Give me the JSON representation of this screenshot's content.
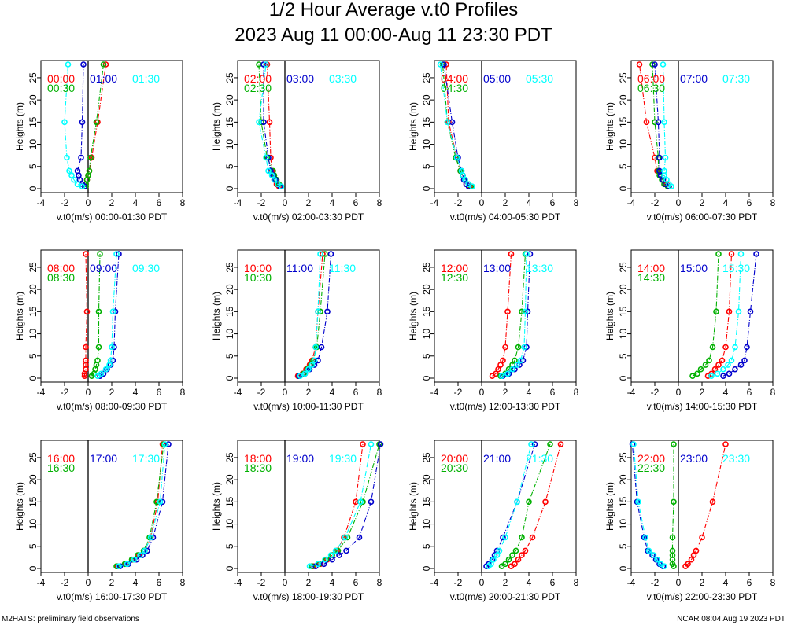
{
  "page": {
    "title_line1": "1/2 Hour Average v.t0 Profiles",
    "title_line2": "2023 Aug 11 00:00-Aug 11 23:30 PDT",
    "footer_left": "M2HATS: preliminary field observations",
    "footer_right": "NCAR 08:04 Aug 19 2023 PDT"
  },
  "colors": {
    "red": "#ff0000",
    "green": "#00b000",
    "blue": "#0000cc",
    "cyan": "#00ffff"
  },
  "chart_data": [
    {
      "type": "line",
      "xlabel": "v.t0(m/s) 00:00-01:30 PDT",
      "ylabel": "Heights (m)",
      "xlim": [
        -4,
        8
      ],
      "ylim": [
        0,
        28
      ],
      "xticks": [
        "-4",
        "-2",
        "0",
        "2",
        "4",
        "6",
        "8"
      ],
      "yticks": [
        "0",
        "5",
        "10",
        "15",
        "20",
        "25"
      ],
      "heights": [
        0.5,
        1,
        2,
        3,
        4,
        7,
        15,
        28
      ],
      "series": [
        {
          "name": "00:00",
          "color": "red",
          "x": [
            -0.2,
            -0.2,
            -0.1,
            0,
            0.1,
            0.3,
            0.8,
            1.5
          ]
        },
        {
          "name": "00:30",
          "color": "green",
          "x": [
            -0.2,
            -0.2,
            -0.1,
            0,
            0.1,
            0.2,
            0.7,
            1.3
          ]
        },
        {
          "name": "01:00",
          "color": "blue",
          "x": [
            -0.3,
            -0.5,
            -0.7,
            -0.8,
            -0.9,
            -0.6,
            -0.5,
            -0.4
          ]
        },
        {
          "name": "01:30",
          "color": "cyan",
          "x": [
            -0.5,
            -0.9,
            -1.2,
            -1.4,
            -1.6,
            -1.8,
            -2.0,
            -1.7
          ]
        }
      ]
    },
    {
      "type": "line",
      "xlabel": "v.t0(m/s) 02:00-03:30 PDT",
      "ylabel": "Heights (m)",
      "xlim": [
        -4,
        8
      ],
      "ylim": [
        0,
        28
      ],
      "xticks": [
        "-4",
        "-2",
        "0",
        "2",
        "4",
        "6",
        "8"
      ],
      "yticks": [
        "0",
        "5",
        "10",
        "15",
        "20",
        "25"
      ],
      "heights": [
        0.5,
        1,
        2,
        3,
        4,
        7,
        15,
        28
      ],
      "series": [
        {
          "name": "02:00",
          "color": "red",
          "x": [
            -0.5,
            -0.7,
            -0.9,
            -1.0,
            -1.1,
            -1.2,
            -1.3,
            -1.5
          ]
        },
        {
          "name": "02:30",
          "color": "green",
          "x": [
            -0.3,
            -0.5,
            -0.7,
            -0.9,
            -1.0,
            -1.5,
            -2.0,
            -2.2
          ]
        },
        {
          "name": "03:00",
          "color": "blue",
          "x": [
            -0.4,
            -0.6,
            -0.8,
            -1.0,
            -1.2,
            -1.4,
            -1.8,
            -1.8
          ]
        },
        {
          "name": "03:30",
          "color": "cyan",
          "x": [
            -0.3,
            -0.6,
            -0.9,
            -1.1,
            -1.4,
            -1.6,
            -2.2,
            -1.6
          ]
        }
      ]
    },
    {
      "type": "line",
      "xlabel": "v.t0(m/s) 04:00-05:30 PDT",
      "ylabel": "Heights (m)",
      "xlim": [
        -4,
        8
      ],
      "ylim": [
        0,
        28
      ],
      "xticks": [
        "-4",
        "-2",
        "0",
        "2",
        "4",
        "6",
        "8"
      ],
      "yticks": [
        "0",
        "5",
        "10",
        "15",
        "20",
        "25"
      ],
      "heights": [
        0.5,
        1,
        2,
        3,
        4,
        7,
        15,
        28
      ],
      "series": [
        {
          "name": "04:00",
          "color": "red",
          "x": [
            -1.0,
            -1.3,
            -1.5,
            -1.6,
            -1.8,
            -2.1,
            -2.8,
            -3.0
          ]
        },
        {
          "name": "04:30",
          "color": "green",
          "x": [
            -0.9,
            -1.1,
            -1.4,
            -1.6,
            -1.8,
            -2.2,
            -2.9,
            -3.3
          ]
        },
        {
          "name": "05:00",
          "color": "blue",
          "x": [
            -1.1,
            -1.3,
            -1.5,
            -1.6,
            -1.7,
            -2.0,
            -2.5,
            -3.2
          ]
        },
        {
          "name": "05:30",
          "color": "cyan",
          "x": [
            -0.8,
            -1.1,
            -1.4,
            -1.6,
            -1.7,
            -2.1,
            -2.9,
            -3.5
          ]
        }
      ]
    },
    {
      "type": "line",
      "xlabel": "v.t0(m/s) 06:00-07:30 PDT",
      "ylabel": "Heights (m)",
      "xlim": [
        -4,
        8
      ],
      "ylim": [
        0,
        28
      ],
      "xticks": [
        "-4",
        "-2",
        "0",
        "2",
        "4",
        "6",
        "8"
      ],
      "yticks": [
        "0",
        "5",
        "10",
        "15",
        "20",
        "25"
      ],
      "heights": [
        0.5,
        1,
        2,
        3,
        4,
        7,
        15,
        28
      ],
      "series": [
        {
          "name": "06:00",
          "color": "red",
          "x": [
            -0.8,
            -1.0,
            -1.3,
            -1.5,
            -1.8,
            -2.0,
            -2.7,
            -3.3
          ]
        },
        {
          "name": "06:30",
          "color": "green",
          "x": [
            -0.9,
            -1.2,
            -1.4,
            -1.6,
            -1.7,
            -1.7,
            -2.0,
            -2.2
          ]
        },
        {
          "name": "07:00",
          "color": "blue",
          "x": [
            -0.8,
            -1.1,
            -1.3,
            -1.5,
            -1.6,
            -1.6,
            -1.7,
            -2.0
          ]
        },
        {
          "name": "07:30",
          "color": "cyan",
          "x": [
            -0.6,
            -0.8,
            -1.0,
            -1.2,
            -1.2,
            -1.1,
            -1.2,
            -1.3
          ]
        }
      ]
    },
    {
      "type": "line",
      "xlabel": "v.t0(m/s) 08:00-09:30 PDT",
      "ylabel": "Heights (m)",
      "xlim": [
        -4,
        8
      ],
      "ylim": [
        0,
        28
      ],
      "xticks": [
        "-4",
        "-2",
        "0",
        "2",
        "4",
        "6",
        "8"
      ],
      "yticks": [
        "0",
        "5",
        "10",
        "15",
        "20",
        "25"
      ],
      "heights": [
        0.5,
        1,
        2,
        3,
        4,
        7,
        15,
        28
      ],
      "series": [
        {
          "name": "08:00",
          "color": "red",
          "x": [
            -0.3,
            -0.3,
            -0.2,
            -0.2,
            -0.2,
            -0.2,
            -0.1,
            -0.2
          ]
        },
        {
          "name": "08:30",
          "color": "green",
          "x": [
            0.3,
            0.5,
            0.6,
            0.7,
            0.8,
            0.9,
            0.9,
            1.0
          ]
        },
        {
          "name": "09:00",
          "color": "blue",
          "x": [
            1.0,
            1.3,
            1.6,
            1.9,
            2.1,
            2.2,
            2.3,
            2.6
          ]
        },
        {
          "name": "09:30",
          "color": "cyan",
          "x": [
            0.8,
            1.1,
            1.5,
            1.8,
            1.9,
            2.0,
            2.1,
            2.4
          ]
        }
      ]
    },
    {
      "type": "line",
      "xlabel": "v.t0(m/s) 10:00-11:30 PDT",
      "ylabel": "Heights (m)",
      "xlim": [
        -4,
        8
      ],
      "ylim": [
        0,
        28
      ],
      "xticks": [
        "-4",
        "-2",
        "0",
        "2",
        "4",
        "6",
        "8"
      ],
      "yticks": [
        "0",
        "5",
        "10",
        "15",
        "20",
        "25"
      ],
      "heights": [
        0.5,
        1,
        2,
        3,
        4,
        7,
        15,
        28
      ],
      "series": [
        {
          "name": "10:00",
          "color": "red",
          "x": [
            1.1,
            1.5,
            1.8,
            2.1,
            2.3,
            2.6,
            2.8,
            3.2
          ]
        },
        {
          "name": "10:30",
          "color": "green",
          "x": [
            1.2,
            1.6,
            1.9,
            2.2,
            2.4,
            2.7,
            3.0,
            3.4
          ]
        },
        {
          "name": "11:00",
          "color": "blue",
          "x": [
            1.2,
            1.7,
            2.1,
            2.5,
            2.8,
            3.1,
            3.6,
            3.9
          ]
        },
        {
          "name": "11:30",
          "color": "cyan",
          "x": [
            1.3,
            1.7,
            2.0,
            2.3,
            2.5,
            2.6,
            2.8,
            3.0
          ]
        }
      ]
    },
    {
      "type": "line",
      "xlabel": "v.t0(m/s) 12:00-13:30 PDT",
      "ylabel": "Heights (m)",
      "xlim": [
        -4,
        8
      ],
      "ylim": [
        0,
        28
      ],
      "xticks": [
        "-4",
        "-2",
        "0",
        "2",
        "4",
        "6",
        "8"
      ],
      "yticks": [
        "0",
        "5",
        "10",
        "15",
        "20",
        "25"
      ],
      "heights": [
        0.5,
        1,
        2,
        3,
        4,
        7,
        15,
        28
      ],
      "series": [
        {
          "name": "12:00",
          "color": "red",
          "x": [
            0.9,
            1.2,
            1.4,
            1.6,
            1.8,
            2.0,
            2.2,
            2.5
          ]
        },
        {
          "name": "12:30",
          "color": "green",
          "x": [
            1.6,
            2.0,
            2.3,
            2.6,
            2.8,
            3.1,
            3.4,
            3.7
          ]
        },
        {
          "name": "13:00",
          "color": "blue",
          "x": [
            1.8,
            2.3,
            2.8,
            3.2,
            3.5,
            3.8,
            3.9,
            4.1
          ]
        },
        {
          "name": "13:30",
          "color": "cyan",
          "x": [
            1.7,
            2.2,
            2.6,
            3.0,
            3.3,
            3.6,
            3.7,
            3.8
          ]
        }
      ]
    },
    {
      "type": "line",
      "xlabel": "v.t0(m/s) 14:00-15:30 PDT",
      "ylabel": "Heights (m)",
      "xlim": [
        -4,
        8
      ],
      "ylim": [
        0,
        28
      ],
      "xticks": [
        "-4",
        "-2",
        "0",
        "2",
        "4",
        "6",
        "8"
      ],
      "yticks": [
        "0",
        "5",
        "10",
        "15",
        "20",
        "25"
      ],
      "heights": [
        0.5,
        1,
        2,
        3,
        4,
        7,
        15,
        28
      ],
      "series": [
        {
          "name": "14:00",
          "color": "red",
          "x": [
            2.5,
            2.8,
            3.1,
            3.4,
            3.7,
            4.0,
            4.3,
            4.5
          ]
        },
        {
          "name": "14:30",
          "color": "green",
          "x": [
            1.2,
            1.6,
            1.9,
            2.3,
            2.6,
            2.9,
            3.2,
            3.4
          ]
        },
        {
          "name": "15:00",
          "color": "blue",
          "x": [
            3.8,
            4.3,
            4.8,
            5.3,
            5.6,
            5.8,
            6.1,
            6.6
          ]
        },
        {
          "name": "15:30",
          "color": "cyan",
          "x": [
            2.8,
            3.3,
            3.8,
            4.2,
            4.5,
            4.8,
            5.1,
            5.3
          ]
        }
      ]
    },
    {
      "type": "line",
      "xlabel": "v.t0(m/s) 16:00-17:30 PDT",
      "ylabel": "Heights (m)",
      "xlim": [
        -4,
        8
      ],
      "ylim": [
        0,
        28
      ],
      "xticks": [
        "-4",
        "-2",
        "0",
        "2",
        "4",
        "6",
        "8"
      ],
      "yticks": [
        "0",
        "5",
        "10",
        "15",
        "20",
        "25"
      ],
      "heights": [
        0.5,
        1,
        2,
        3,
        4,
        7,
        15,
        28
      ],
      "series": [
        {
          "name": "16:00",
          "color": "red",
          "x": [
            2.5,
            3.2,
            3.8,
            4.3,
            4.8,
            5.3,
            5.9,
            6.3
          ]
        },
        {
          "name": "16:30",
          "color": "green",
          "x": [
            2.4,
            3.1,
            3.7,
            4.2,
            4.7,
            5.2,
            5.8,
            6.4
          ]
        },
        {
          "name": "17:00",
          "color": "blue",
          "x": [
            2.7,
            3.4,
            4.1,
            4.6,
            5.0,
            5.5,
            6.3,
            6.8
          ]
        },
        {
          "name": "17:30",
          "color": "cyan",
          "x": [
            2.6,
            3.3,
            3.9,
            4.4,
            4.8,
            5.3,
            6.1,
            6.5
          ]
        }
      ]
    },
    {
      "type": "line",
      "xlabel": "v.t0(m/s) 18:00-19:30 PDT",
      "ylabel": "Heights (m)",
      "xlim": [
        -4,
        8
      ],
      "ylim": [
        0,
        28
      ],
      "xticks": [
        "-4",
        "-2",
        "0",
        "2",
        "4",
        "6",
        "8"
      ],
      "yticks": [
        "0",
        "5",
        "10",
        "15",
        "20",
        "25"
      ],
      "heights": [
        0.5,
        1,
        2,
        3,
        4,
        7,
        15,
        28
      ],
      "series": [
        {
          "name": "18:00",
          "color": "red",
          "x": [
            2.4,
            3.0,
            3.6,
            4.0,
            4.4,
            5.0,
            6.0,
            6.6
          ]
        },
        {
          "name": "18:30",
          "color": "green",
          "x": [
            2.3,
            2.9,
            3.5,
            4.0,
            4.5,
            5.3,
            6.6,
            8.0
          ]
        },
        {
          "name": "19:00",
          "color": "blue",
          "x": [
            2.6,
            3.3,
            4.0,
            4.6,
            5.2,
            6.3,
            7.3,
            8.1
          ]
        },
        {
          "name": "19:30",
          "color": "cyan",
          "x": [
            2.1,
            2.8,
            3.4,
            3.9,
            4.3,
            5.1,
            6.4,
            7.3
          ]
        }
      ]
    },
    {
      "type": "line",
      "xlabel": "v.t0(m/s) 20:00-21:30 PDT",
      "ylabel": "Heights (m)",
      "xlim": [
        -4,
        8
      ],
      "ylim": [
        0,
        28
      ],
      "xticks": [
        "-4",
        "-2",
        "0",
        "2",
        "4",
        "6",
        "8"
      ],
      "yticks": [
        "0",
        "5",
        "10",
        "15",
        "20",
        "25"
      ],
      "heights": [
        0.5,
        1,
        2,
        3,
        4,
        7,
        15,
        28
      ],
      "series": [
        {
          "name": "20:00",
          "color": "red",
          "x": [
            2.5,
            2.8,
            3.1,
            3.4,
            3.7,
            4.3,
            5.4,
            6.7
          ]
        },
        {
          "name": "20:30",
          "color": "green",
          "x": [
            1.7,
            2.0,
            2.3,
            2.6,
            2.9,
            3.4,
            4.0,
            5.8
          ]
        },
        {
          "name": "21:00",
          "color": "blue",
          "x": [
            0.4,
            0.6,
            0.9,
            1.1,
            1.3,
            1.8,
            3.0,
            4.5
          ]
        },
        {
          "name": "21:30",
          "color": "cyan",
          "x": [
            0.6,
            0.8,
            1.0,
            1.3,
            1.5,
            2.0,
            3.0,
            4.2
          ]
        }
      ]
    },
    {
      "type": "line",
      "xlabel": "v.t0(m/s) 22:00-23:30 PDT",
      "ylabel": "Heights (m)",
      "xlim": [
        -4,
        8
      ],
      "ylim": [
        0,
        28
      ],
      "xticks": [
        "-4",
        "-2",
        "0",
        "2",
        "4",
        "6",
        "8"
      ],
      "yticks": [
        "0",
        "5",
        "10",
        "15",
        "20",
        "25"
      ],
      "heights": [
        0.5,
        1,
        2,
        3,
        4,
        7,
        15,
        28
      ],
      "series": [
        {
          "name": "22:00",
          "color": "red",
          "x": [
            0.6,
            0.8,
            1.1,
            1.3,
            1.5,
            2.0,
            2.9,
            4.0
          ]
        },
        {
          "name": "22:30",
          "color": "green",
          "x": [
            -0.4,
            -0.5,
            -0.5,
            -0.5,
            -0.5,
            -0.5,
            -0.4,
            -0.4
          ]
        },
        {
          "name": "23:00",
          "color": "blue",
          "x": [
            -1.3,
            -1.6,
            -1.9,
            -2.2,
            -2.6,
            -2.9,
            -3.5,
            -3.9
          ]
        },
        {
          "name": "23:30",
          "color": "cyan",
          "x": [
            -1.2,
            -1.5,
            -1.8,
            -2.1,
            -2.5,
            -2.8,
            -3.4,
            -3.8
          ]
        }
      ]
    }
  ]
}
